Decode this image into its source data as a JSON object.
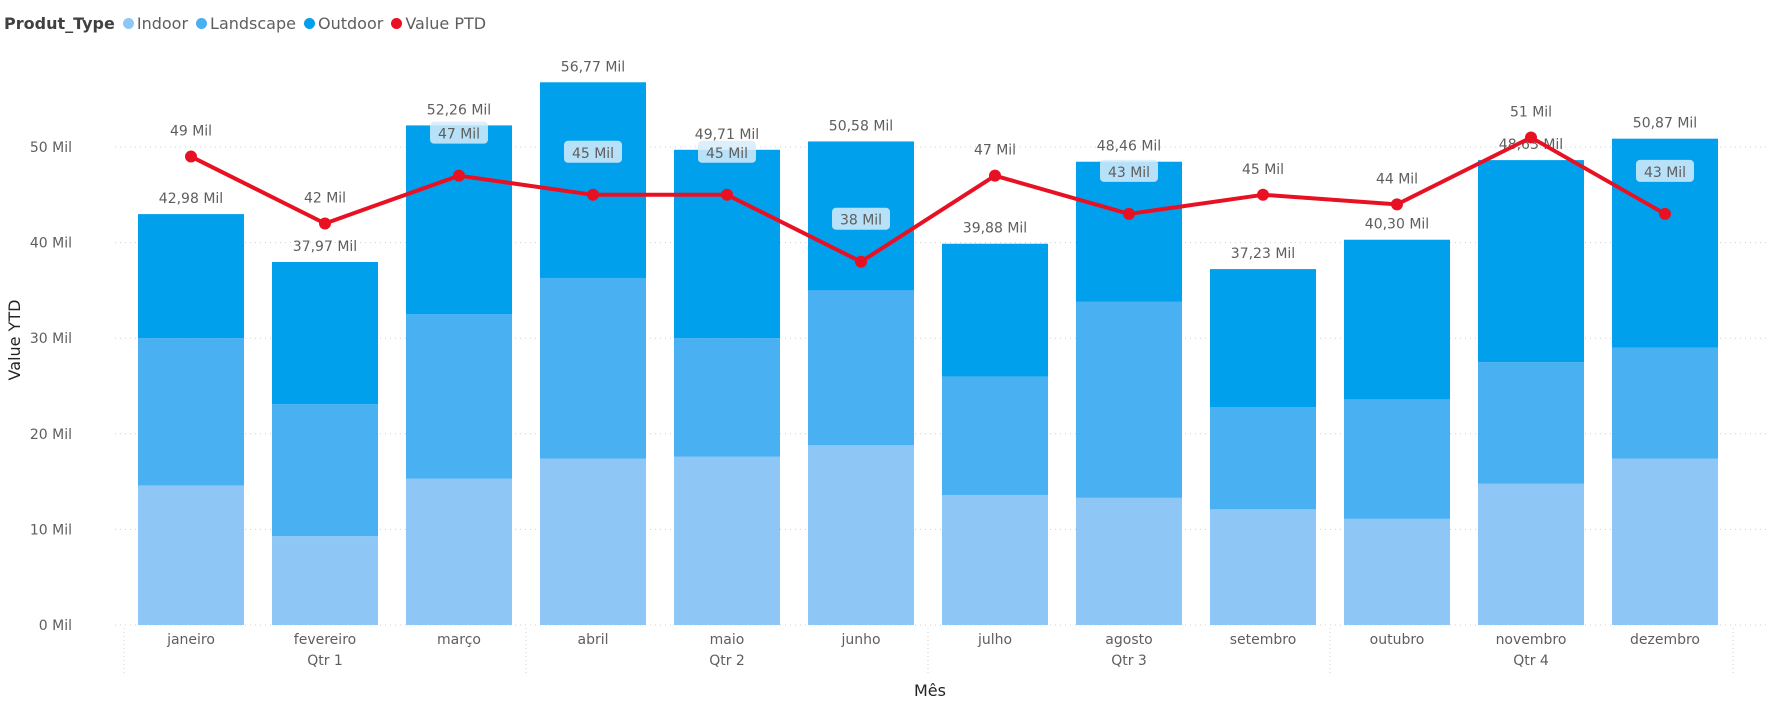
{
  "chart_data": {
    "type": "bar",
    "subtype": "stacked-bar-with-line",
    "legend": {
      "title": "Produt_Type",
      "position": "top-left",
      "items": [
        {
          "name": "Indoor",
          "color": "#8ec6f5"
        },
        {
          "name": "Landscape",
          "color": "#49b0f1"
        },
        {
          "name": "Outdoor",
          "color": "#00a0ec"
        },
        {
          "name": "Value PTD",
          "color": "#e81123"
        }
      ]
    },
    "categories": [
      "janeiro",
      "fevereiro",
      "março",
      "abril",
      "maio",
      "junho",
      "julho",
      "agosto",
      "setembro",
      "outubro",
      "novembro",
      "dezembro"
    ],
    "quarter_groups": [
      {
        "label": "Qtr 1",
        "span": 3
      },
      {
        "label": "Qtr 2",
        "span": 3
      },
      {
        "label": "Qtr 3",
        "span": 3
      },
      {
        "label": "Qtr 4",
        "span": 3
      }
    ],
    "series": [
      {
        "name": "Indoor",
        "color": "#8ec6f5",
        "values": [
          14.6,
          9.3,
          15.3,
          17.4,
          17.6,
          18.8,
          13.6,
          13.3,
          12.1,
          11.1,
          14.8,
          17.4
        ]
      },
      {
        "name": "Landscape",
        "color": "#49b0f1",
        "values": [
          15.4,
          13.8,
          17.2,
          18.9,
          12.4,
          16.2,
          12.4,
          20.5,
          10.7,
          12.5,
          12.7,
          11.6
        ]
      },
      {
        "name": "Outdoor",
        "color": "#00a0ec",
        "values": [
          12.98,
          14.87,
          19.76,
          20.47,
          19.71,
          15.58,
          13.88,
          14.66,
          14.43,
          16.7,
          21.13,
          21.87
        ]
      }
    ],
    "total_labels": [
      "42,98 Mil",
      "37,97 Mil",
      "52,26 Mil",
      "56,77 Mil",
      "49,71 Mil",
      "50,58 Mil",
      "39,88 Mil",
      "48,46 Mil",
      "37,23 Mil",
      "40,30 Mil",
      "48,63 Mil",
      "50,87 Mil"
    ],
    "line": {
      "name": "Value PTD",
      "color": "#e81123",
      "values": [
        49,
        42,
        47,
        45,
        45,
        38,
        47,
        43,
        45,
        44,
        51,
        43
      ],
      "labels": [
        "49 Mil",
        "42 Mil",
        "47 Mil",
        "45 Mil",
        "45 Mil",
        "38 Mil",
        "47 Mil",
        "43 Mil",
        "45 Mil",
        "44 Mil",
        "51 Mil",
        "43 Mil"
      ],
      "boxed_label": [
        false,
        false,
        true,
        true,
        true,
        true,
        false,
        true,
        false,
        false,
        false,
        true
      ]
    },
    "xlabel": "Mês",
    "ylabel": "Value YTD",
    "ylim": [
      0,
      50
    ],
    "yticks": [
      "0 Mil",
      "10 Mil",
      "20 Mil",
      "30 Mil",
      "40 Mil",
      "50 Mil"
    ],
    "grid": true
  }
}
